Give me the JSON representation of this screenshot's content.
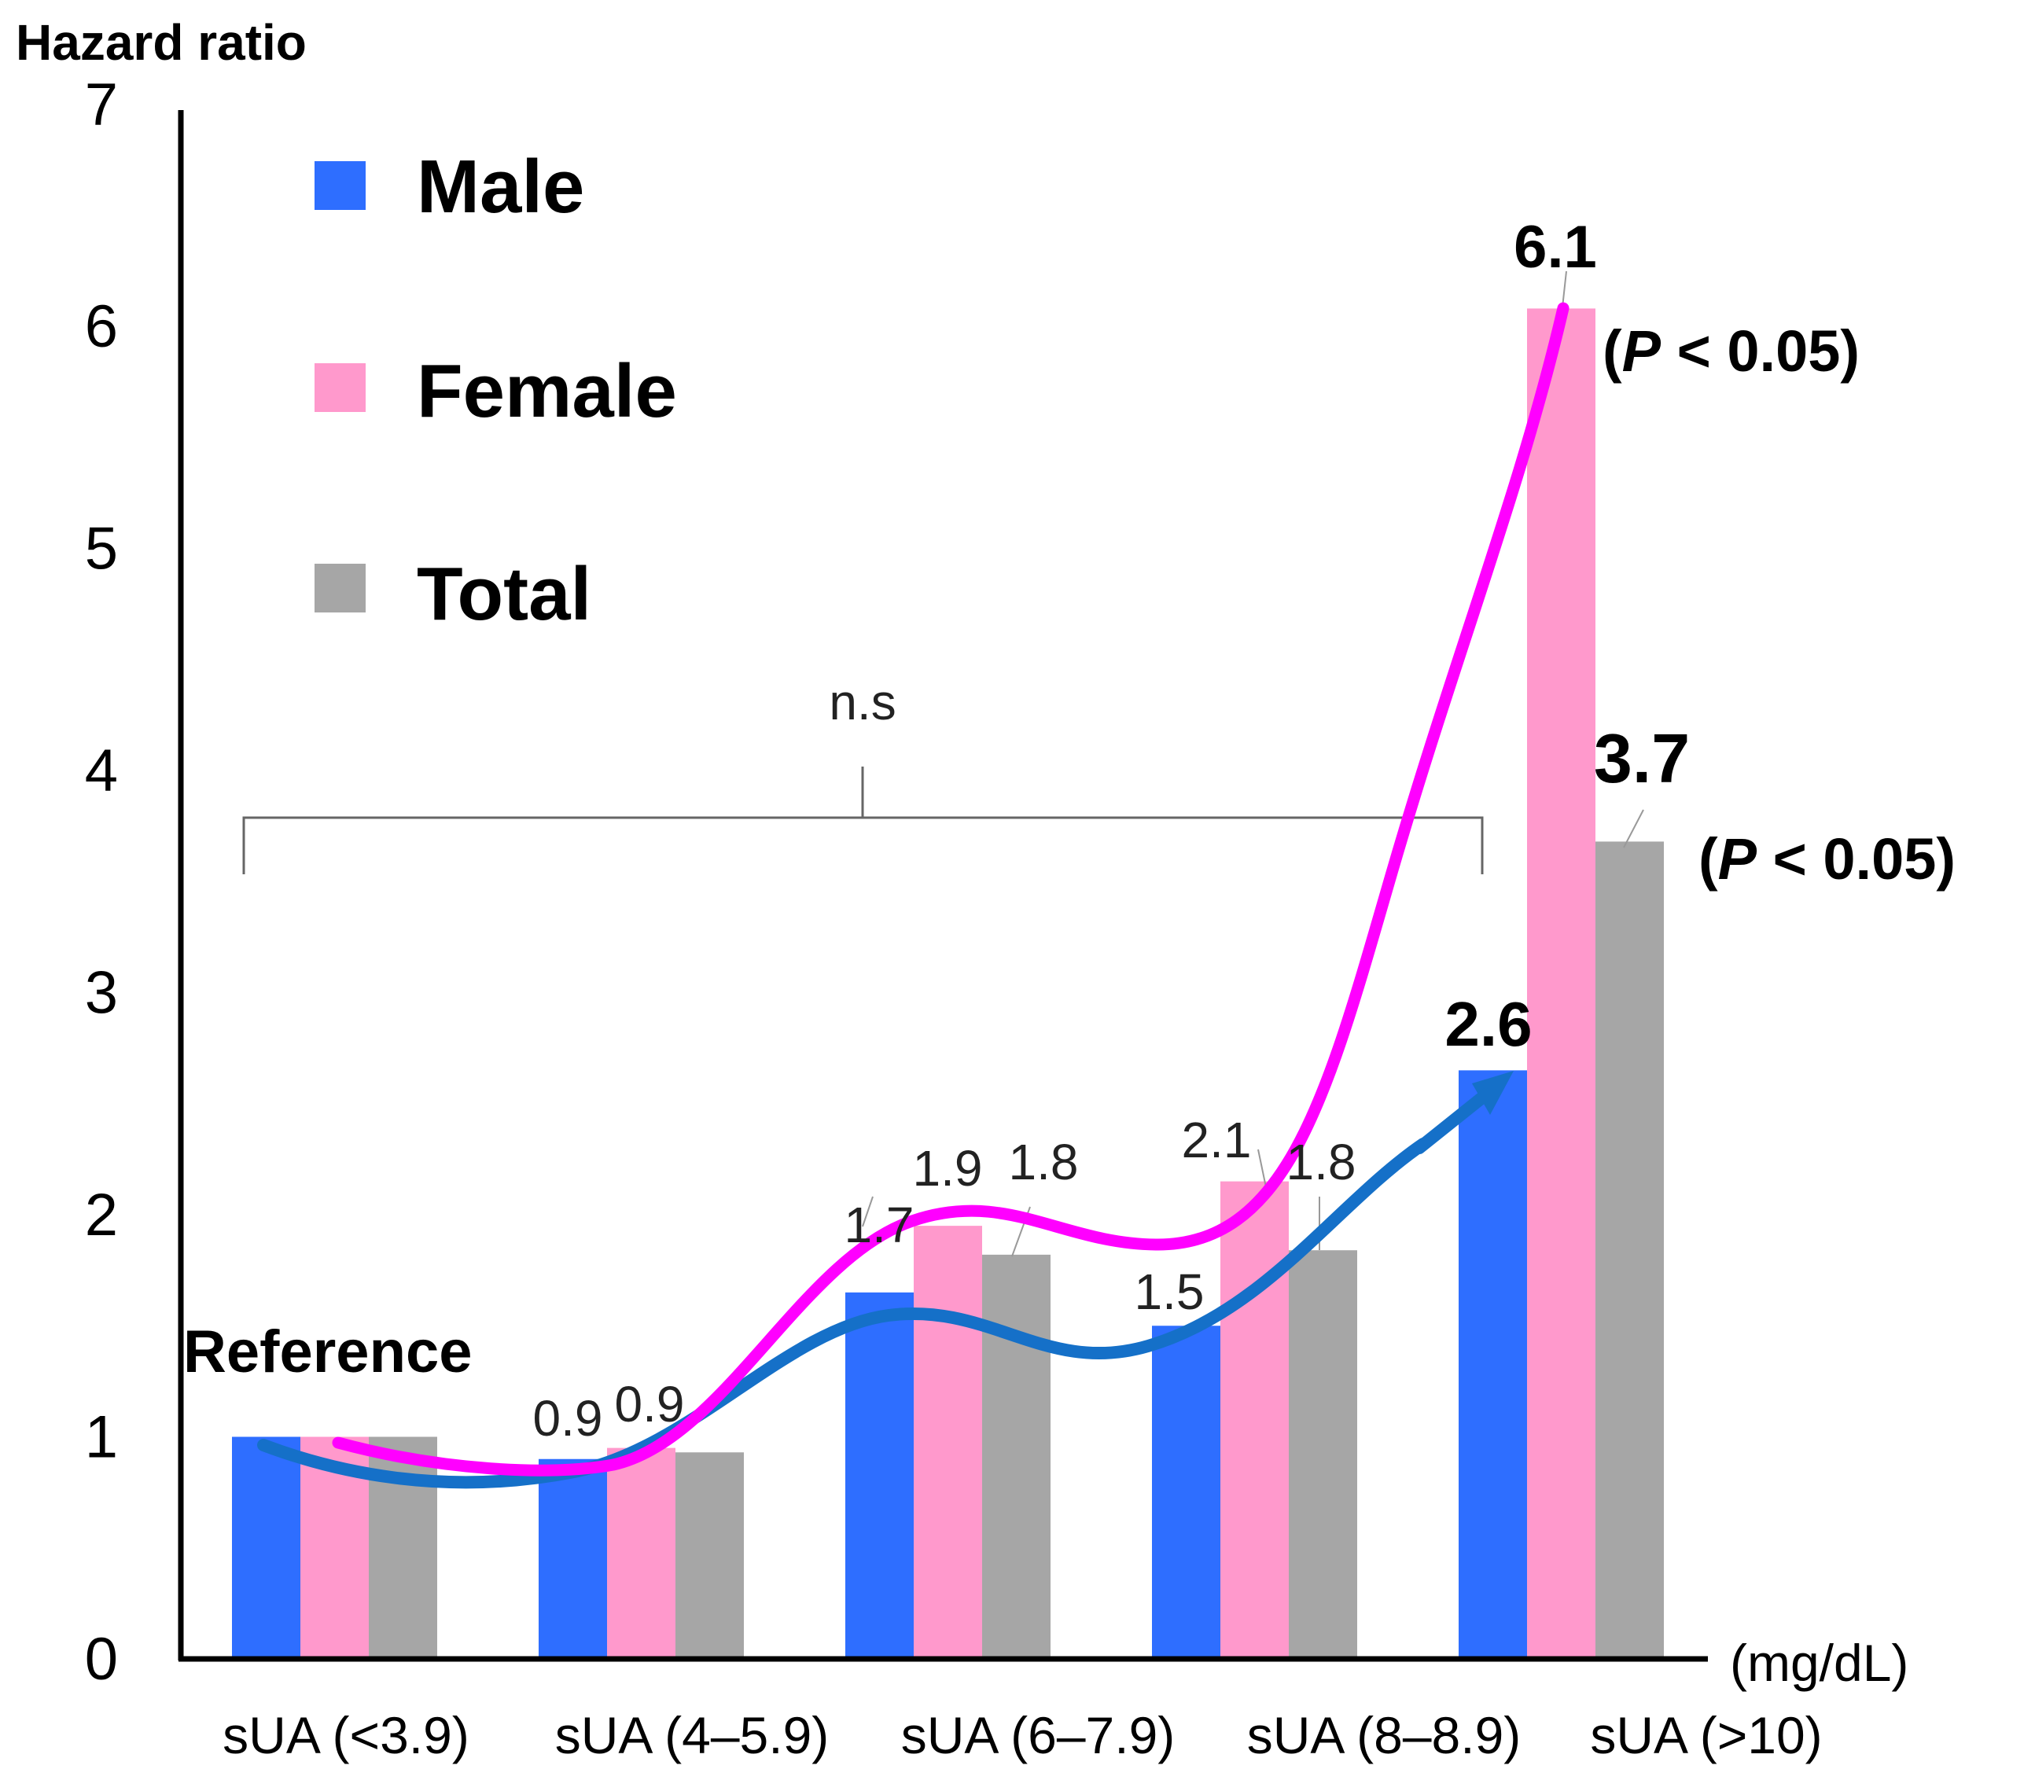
{
  "chart_data": {
    "type": "bar",
    "ylabel": "Hazard ratio",
    "xunit": "(mg/dL)",
    "ylim": [
      0,
      7
    ],
    "yticks": [
      "0",
      "1",
      "2",
      "3",
      "4",
      "5",
      "6",
      "7"
    ],
    "categories": [
      "sUA (<3.9)",
      "sUA (4–5.9)",
      "sUA (6–7.9)",
      "sUA (8–8.9)",
      "sUA (>10)"
    ],
    "series": [
      {
        "name": "Male",
        "color": "#2E6EFF",
        "values": [
          1.0,
          0.9,
          1.65,
          1.5,
          2.65
        ]
      },
      {
        "name": "Female",
        "color": "#FF99CC",
        "values": [
          1.0,
          0.95,
          1.95,
          2.15,
          6.08
        ]
      },
      {
        "name": "Total",
        "color": "#A6A6A6",
        "values": [
          1.0,
          0.93,
          1.82,
          1.84,
          3.68
        ]
      }
    ],
    "trend_lines": [
      {
        "series": "Male",
        "color": "#1570C8"
      },
      {
        "series": "Female",
        "color": "#FF00FF"
      }
    ],
    "legend_position": "top-left",
    "grid": false
  },
  "annotations": {
    "reference": "Reference",
    "ns": "n.s",
    "p_female": "(P < 0.05)",
    "p_total": "(P < 0.05)",
    "p_letter": "P",
    "p_open": "(",
    "p_rest": " < 0.05)"
  },
  "data_labels": [
    {
      "text": "0.9",
      "category": 1,
      "series": 0
    },
    {
      "text": "0.9",
      "category": 1,
      "series": 1
    },
    {
      "text": "1.7",
      "category": 2,
      "series": 0
    },
    {
      "text": "1.9",
      "category": 2,
      "series": 1
    },
    {
      "text": "1.8",
      "category": 2,
      "series": 2
    },
    {
      "text": "1.5",
      "category": 3,
      "series": 0
    },
    {
      "text": "2.1",
      "category": 3,
      "series": 1
    },
    {
      "text": "1.8",
      "category": 3,
      "series": 2
    },
    {
      "text": "2.6",
      "category": 4,
      "series": 0
    },
    {
      "text": "6.1",
      "category": 4,
      "series": 1
    },
    {
      "text": "3.7",
      "category": 4,
      "series": 2
    }
  ]
}
